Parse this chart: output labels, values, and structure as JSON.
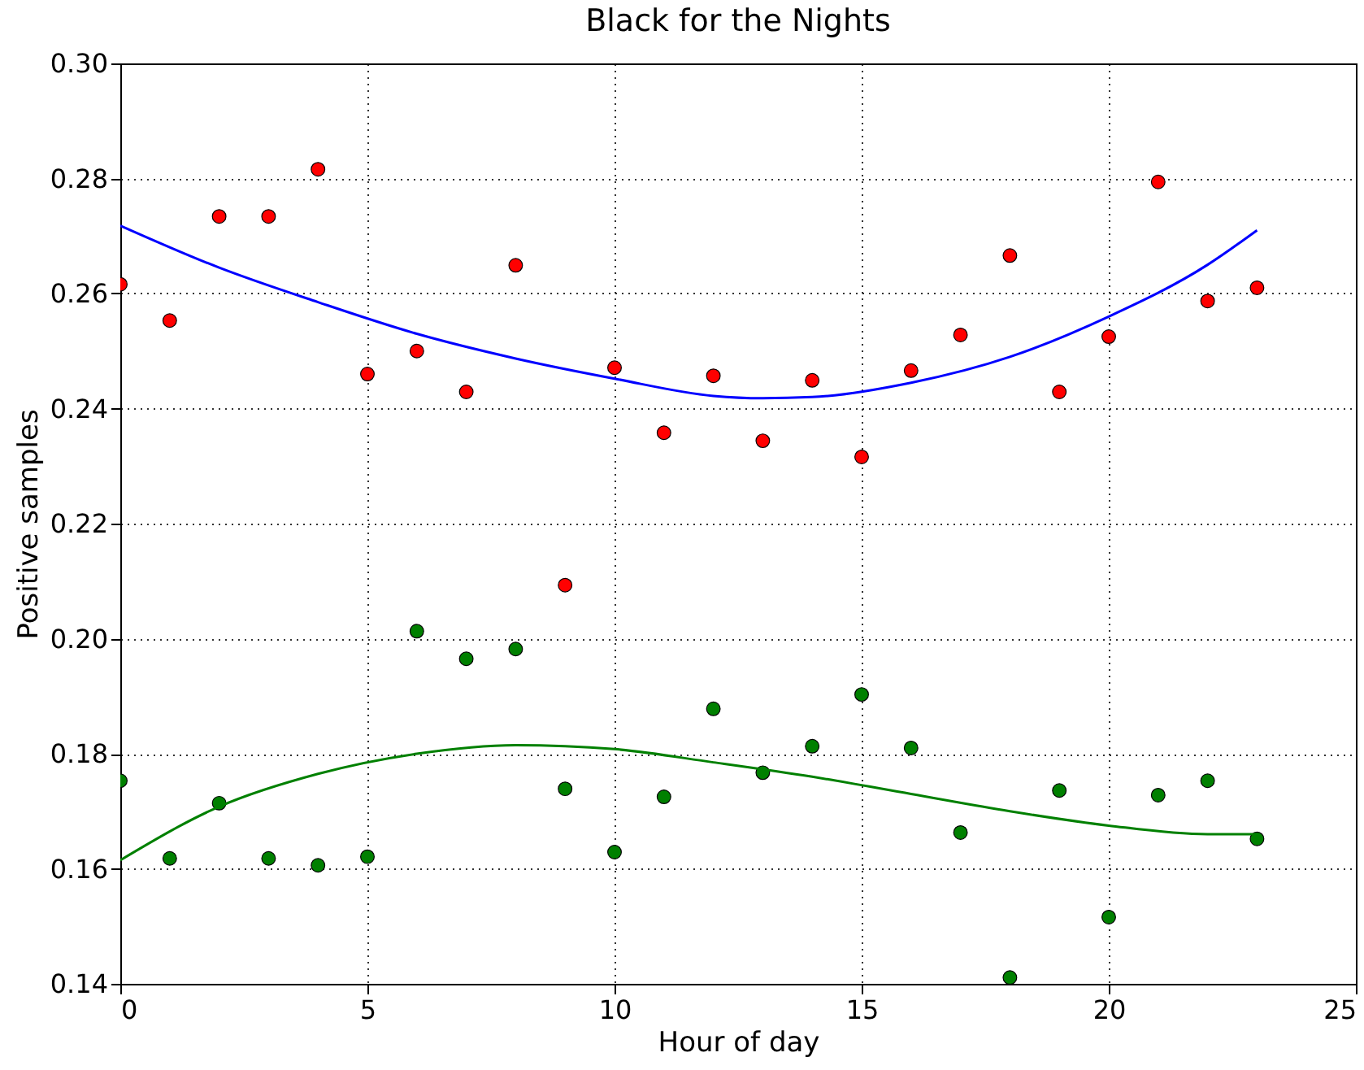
{
  "chart_data": {
    "type": "scatter",
    "title": "Black for the Nights",
    "xlabel": "Hour of day",
    "ylabel": "Positive samples",
    "x": [
      0,
      1,
      2,
      3,
      4,
      5,
      6,
      7,
      8,
      9,
      10,
      11,
      12,
      13,
      14,
      15,
      16,
      17,
      18,
      19,
      20,
      21,
      22,
      23
    ],
    "xlim": [
      0,
      25
    ],
    "xticks": [
      0,
      5,
      10,
      15,
      20,
      25
    ],
    "ylim": [
      0.14,
      0.3
    ],
    "yticks": [
      0.14,
      0.16,
      0.18,
      {
        "value": 0.2,
        "label": "0.20"
      },
      0.22,
      0.24,
      0.26,
      0.28,
      {
        "value": 0.3,
        "label": "0.30"
      }
    ],
    "grid": true,
    "series": [
      {
        "marker": "circle",
        "color": "#ff0000",
        "values": [
          0.2616,
          0.2553,
          0.2734,
          0.2734,
          0.2816,
          0.246,
          0.25,
          0.2429,
          0.2649,
          0.2093,
          0.2471,
          0.2358,
          0.2457,
          0.2344,
          0.2449,
          0.2316,
          0.2466,
          0.2528,
          0.2666,
          0.2429,
          0.2525,
          0.2794,
          0.2587,
          0.261
        ]
      },
      {
        "marker": "circle",
        "color": "#008000",
        "values": [
          0.1753,
          0.1618,
          0.1714,
          0.1618,
          0.1606,
          0.1621,
          0.2013,
          0.1965,
          0.1982,
          0.1739,
          0.1629,
          0.1725,
          0.1878,
          0.1767,
          0.1813,
          0.1903,
          0.181,
          0.1663,
          0.1411,
          0.1736,
          0.1516,
          0.1728,
          0.1753,
          0.1652
        ]
      },
      {
        "type": "line",
        "line_style": "solid",
        "color": "#0000ff",
        "x": [
          0,
          2,
          4,
          6,
          8,
          10,
          12,
          13,
          14,
          16,
          18,
          20,
          22,
          23
        ],
        "values": [
          0.2718,
          0.2645,
          0.2585,
          0.253,
          0.2487,
          0.2452,
          0.2422,
          0.2418,
          0.242,
          0.2445,
          0.249,
          0.256,
          0.265,
          0.271
        ]
      },
      {
        "type": "line",
        "line_style": "solid",
        "color": "#008000",
        "x": [
          0,
          2,
          4,
          6,
          8,
          10,
          12,
          14,
          16,
          18,
          20,
          22,
          23
        ],
        "values": [
          0.1615,
          0.1708,
          0.1765,
          0.18,
          0.1815,
          0.1808,
          0.1785,
          0.176,
          0.173,
          0.17,
          0.1675,
          0.166,
          0.166
        ]
      }
    ]
  }
}
